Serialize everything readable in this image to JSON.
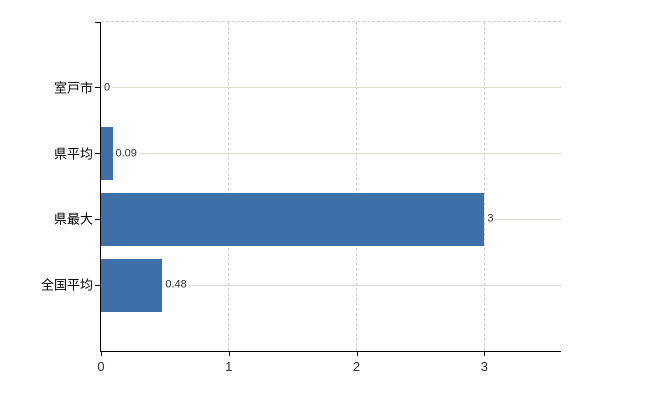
{
  "chart_data": {
    "type": "bar",
    "orientation": "horizontal",
    "title": "",
    "xlabel": "",
    "ylabel": "",
    "categories": [
      "室戸市",
      "県平均",
      "県最大",
      "全国平均"
    ],
    "values": [
      0,
      0.09,
      3,
      0.48
    ],
    "value_labels": [
      "0",
      "0.09",
      "3",
      "0.48"
    ],
    "x_ticks": [
      0,
      1,
      2,
      3
    ],
    "x_tick_labels": [
      "0",
      "1",
      "2",
      "3"
    ],
    "xlim": [
      0,
      3.6
    ],
    "grid": true,
    "legend": false,
    "colors": {
      "bar": "#3f6fa8",
      "axis": "#000000",
      "h_gridline": "#d8dcd2",
      "v_gridline": "#d2d2d2",
      "value_label": "#333333",
      "tick_label": "#333333",
      "background": "#ffffff"
    }
  }
}
